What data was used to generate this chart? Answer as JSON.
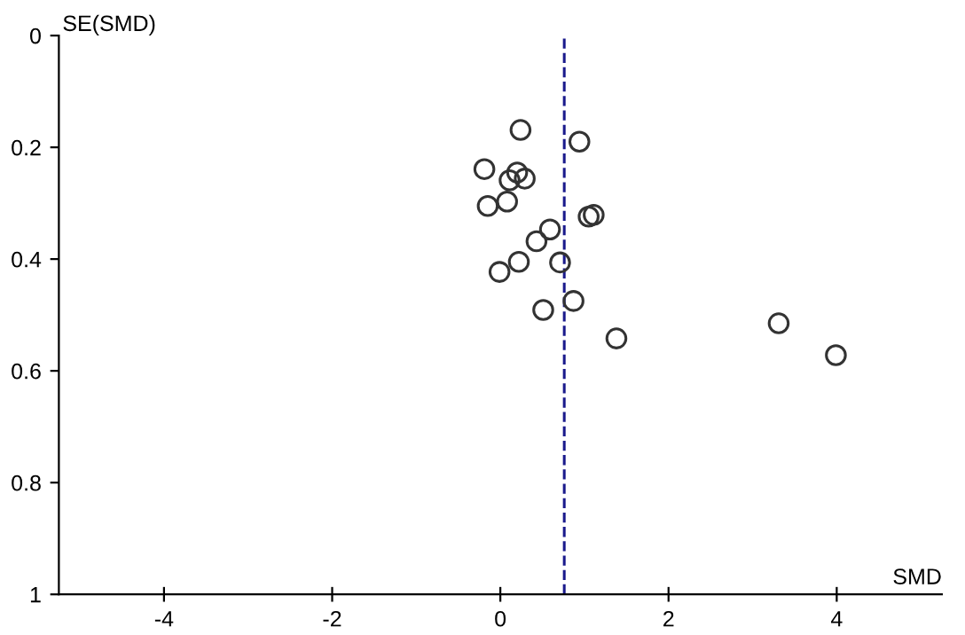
{
  "chart_data": {
    "type": "scatter",
    "xlabel": "SMD",
    "ylabel": "SE(SMD)",
    "x": [
      0.24,
      0.94,
      -0.19,
      0.2,
      0.11,
      0.29,
      -0.15,
      0.08,
      1.05,
      1.11,
      0.59,
      0.43,
      0.71,
      0.22,
      -0.01,
      0.87,
      0.51,
      1.38,
      3.31,
      3.99
    ],
    "series": [
      {
        "color": "#333333",
        "values": [
          0.169,
          0.19,
          0.239,
          0.245,
          0.259,
          0.256,
          0.305,
          0.297,
          0.324,
          0.321,
          0.347,
          0.368,
          0.406,
          0.405,
          0.423,
          0.475,
          0.491,
          0.542,
          0.515,
          0.572
        ]
      }
    ],
    "marker": "circle",
    "grid": false,
    "xlim": [
      -5.25,
      5.25
    ],
    "xticks": [
      -4,
      -2,
      0,
      2,
      4
    ],
    "ylim": [
      1,
      0
    ],
    "yticks": [
      0,
      0.2,
      0.4,
      0.6,
      0.8,
      1
    ],
    "ref_lines": [
      {
        "axis": "x",
        "value": 0.76,
        "color": "#1a1a8c",
        "line_style": "dashed"
      }
    ]
  }
}
